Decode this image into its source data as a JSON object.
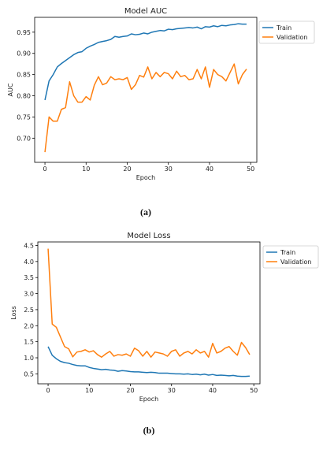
{
  "chart_data": [
    {
      "type": "line",
      "title": "Model AUC",
      "xlabel": "Epoch",
      "ylabel": "AUC",
      "xlim": [
        -2.5,
        51.5
      ],
      "ylim": [
        0.643,
        0.985
      ],
      "xticks": [
        0,
        10,
        20,
        30,
        40,
        50
      ],
      "yticks": [
        0.7,
        0.75,
        0.8,
        0.85,
        0.9,
        0.95
      ],
      "ytick_labels": [
        "0.70",
        "0.75",
        "0.80",
        "0.85",
        "0.90",
        "0.95"
      ],
      "legend": "upper-right-outside",
      "caption": "(a)",
      "series": [
        {
          "name": "Train",
          "color": "#1f77b4",
          "x": [
            0,
            1,
            2,
            3,
            4,
            5,
            6,
            7,
            8,
            9,
            10,
            11,
            12,
            13,
            14,
            15,
            16,
            17,
            18,
            19,
            20,
            21,
            22,
            23,
            24,
            25,
            26,
            27,
            28,
            29,
            30,
            31,
            32,
            33,
            34,
            35,
            36,
            37,
            38,
            39,
            40,
            41,
            42,
            43,
            44,
            45,
            46,
            47,
            48,
            49
          ],
          "values": [
            0.79,
            0.835,
            0.85,
            0.868,
            0.876,
            0.883,
            0.89,
            0.897,
            0.902,
            0.904,
            0.912,
            0.917,
            0.921,
            0.926,
            0.928,
            0.93,
            0.933,
            0.94,
            0.938,
            0.94,
            0.941,
            0.946,
            0.944,
            0.945,
            0.948,
            0.946,
            0.95,
            0.952,
            0.954,
            0.953,
            0.957,
            0.956,
            0.958,
            0.959,
            0.96,
            0.961,
            0.96,
            0.962,
            0.958,
            0.963,
            0.962,
            0.965,
            0.963,
            0.966,
            0.965,
            0.967,
            0.968,
            0.97,
            0.969,
            0.969
          ]
        },
        {
          "name": "Validation",
          "color": "#ff7f0e",
          "x": [
            0,
            1,
            2,
            3,
            4,
            5,
            6,
            7,
            8,
            9,
            10,
            11,
            12,
            13,
            14,
            15,
            16,
            17,
            18,
            19,
            20,
            21,
            22,
            23,
            24,
            25,
            26,
            27,
            28,
            29,
            30,
            31,
            32,
            33,
            34,
            35,
            36,
            37,
            38,
            39,
            40,
            41,
            42,
            43,
            44,
            45,
            46,
            47,
            48,
            49
          ],
          "values": [
            0.667,
            0.75,
            0.74,
            0.74,
            0.768,
            0.772,
            0.833,
            0.8,
            0.785,
            0.785,
            0.798,
            0.79,
            0.825,
            0.845,
            0.826,
            0.83,
            0.845,
            0.838,
            0.84,
            0.838,
            0.843,
            0.815,
            0.826,
            0.848,
            0.844,
            0.868,
            0.84,
            0.855,
            0.845,
            0.855,
            0.852,
            0.84,
            0.858,
            0.845,
            0.848,
            0.838,
            0.84,
            0.862,
            0.84,
            0.868,
            0.82,
            0.862,
            0.85,
            0.845,
            0.835,
            0.855,
            0.875,
            0.828,
            0.85,
            0.863
          ]
        }
      ]
    },
    {
      "type": "line",
      "title": "Model Loss",
      "xlabel": "Epoch",
      "ylabel": "Loss",
      "xlim": [
        -2.5,
        51.5
      ],
      "ylim": [
        0.19,
        4.61
      ],
      "xticks": [
        0,
        10,
        20,
        30,
        40,
        50
      ],
      "yticks": [
        0.5,
        1.0,
        1.5,
        2.0,
        2.5,
        3.0,
        3.5,
        4.0,
        4.5
      ],
      "ytick_labels": [
        "0.5",
        "1.0",
        "1.5",
        "2.0",
        "2.5",
        "3.0",
        "3.5",
        "4.0",
        "4.5"
      ],
      "legend": "upper-right-outside",
      "caption": "(b)",
      "series": [
        {
          "name": "Train",
          "color": "#1f77b4",
          "x": [
            0,
            1,
            2,
            3,
            4,
            5,
            6,
            7,
            8,
            9,
            10,
            11,
            12,
            13,
            14,
            15,
            16,
            17,
            18,
            19,
            20,
            21,
            22,
            23,
            24,
            25,
            26,
            27,
            28,
            29,
            30,
            31,
            32,
            33,
            34,
            35,
            36,
            37,
            38,
            39,
            40,
            41,
            42,
            43,
            44,
            45,
            46,
            47,
            48,
            49
          ],
          "values": [
            1.35,
            1.08,
            0.97,
            0.89,
            0.85,
            0.83,
            0.79,
            0.76,
            0.75,
            0.75,
            0.7,
            0.67,
            0.65,
            0.63,
            0.64,
            0.62,
            0.61,
            0.58,
            0.6,
            0.59,
            0.57,
            0.56,
            0.56,
            0.55,
            0.54,
            0.55,
            0.54,
            0.52,
            0.52,
            0.52,
            0.51,
            0.5,
            0.5,
            0.49,
            0.5,
            0.48,
            0.49,
            0.47,
            0.49,
            0.46,
            0.48,
            0.45,
            0.46,
            0.45,
            0.44,
            0.45,
            0.43,
            0.42,
            0.42,
            0.43
          ]
        },
        {
          "name": "Validation",
          "color": "#ff7f0e",
          "x": [
            0,
            1,
            2,
            3,
            4,
            5,
            6,
            7,
            8,
            9,
            10,
            11,
            12,
            13,
            14,
            15,
            16,
            17,
            18,
            19,
            20,
            21,
            22,
            23,
            24,
            25,
            26,
            27,
            28,
            29,
            30,
            31,
            32,
            33,
            34,
            35,
            36,
            37,
            38,
            39,
            40,
            41,
            42,
            43,
            44,
            45,
            46,
            47,
            48,
            49
          ],
          "values": [
            4.4,
            2.05,
            1.95,
            1.65,
            1.35,
            1.28,
            1.03,
            1.18,
            1.2,
            1.25,
            1.18,
            1.22,
            1.1,
            1.02,
            1.12,
            1.2,
            1.05,
            1.1,
            1.08,
            1.12,
            1.05,
            1.3,
            1.22,
            1.05,
            1.2,
            1.02,
            1.18,
            1.15,
            1.12,
            1.05,
            1.2,
            1.25,
            1.05,
            1.15,
            1.2,
            1.12,
            1.25,
            1.15,
            1.2,
            1.02,
            1.45,
            1.15,
            1.2,
            1.3,
            1.35,
            1.2,
            1.08,
            1.48,
            1.32,
            1.1
          ]
        }
      ]
    }
  ]
}
